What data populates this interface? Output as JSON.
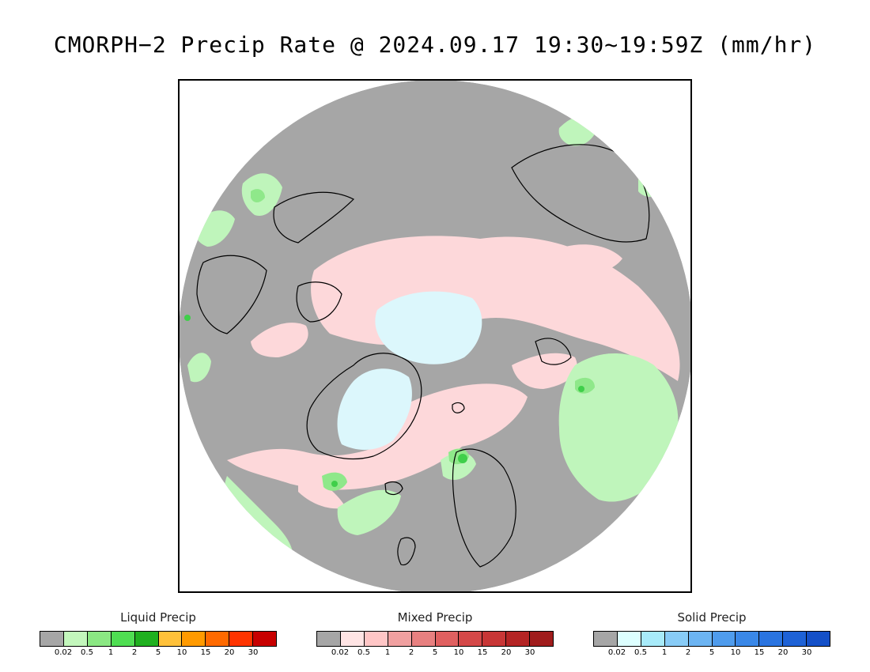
{
  "title": "CMORPH−2 Precip Rate @ 2024.09.17 19:30~19:59Z (mm/hr)",
  "map": {
    "colors": {
      "nodata": "#a6a6a6",
      "liquid_light": "#bff5bb",
      "liquid_mid": "#8fe88a",
      "liquid_strong": "#3fcf4a",
      "mixed_light": "#fdd8da",
      "mixed_mid": "#f3a6aa",
      "solid_light": "#dcf7fc",
      "coast": "#000000"
    }
  },
  "legends": [
    {
      "id": "liquid",
      "title": "Liquid Precip",
      "colors": [
        "#a6a6a6",
        "#c3f7bc",
        "#8be883",
        "#4fde52",
        "#1fb01f",
        "#ffc13a",
        "#ff9a00",
        "#ff6a00",
        "#ff3400",
        "#c80000"
      ],
      "ticks": [
        "0.02",
        "0.5",
        "1",
        "2",
        "5",
        "10",
        "15",
        "20",
        "30"
      ]
    },
    {
      "id": "mixed",
      "title": "Mixed Precip",
      "colors": [
        "#a6a6a6",
        "#ffe4e4",
        "#ffc6c6",
        "#f0a0a0",
        "#e88080",
        "#e06060",
        "#d44848",
        "#c83636",
        "#b42424",
        "#a01c1c"
      ],
      "ticks": [
        "0.02",
        "0.5",
        "1",
        "2",
        "5",
        "10",
        "15",
        "20",
        "30"
      ]
    },
    {
      "id": "solid",
      "title": "Solid Precip",
      "colors": [
        "#a6a6a6",
        "#ddffff",
        "#a8ebfa",
        "#88ccf7",
        "#6cb4f2",
        "#4f9ced",
        "#3a88e8",
        "#2a74e0",
        "#1e62d6",
        "#1450c8"
      ],
      "ticks": [
        "0.02",
        "0.5",
        "1",
        "2",
        "5",
        "10",
        "15",
        "20",
        "30"
      ]
    }
  ]
}
